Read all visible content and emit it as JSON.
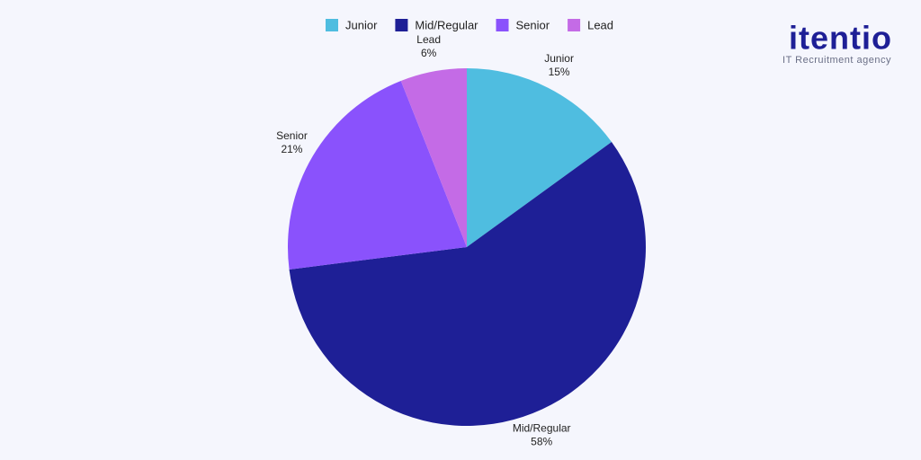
{
  "chart_data": {
    "type": "pie",
    "categories": [
      "Junior",
      "Mid/Regular",
      "Senior",
      "Lead"
    ],
    "values": [
      15,
      58,
      21,
      6
    ],
    "value_labels": [
      "15%",
      "58%",
      "21%",
      "6%"
    ],
    "colors": [
      "#4fbde0",
      "#1e1f96",
      "#8a52fc",
      "#c46be6"
    ],
    "legend": "top"
  },
  "branding": {
    "name": "itentio",
    "tagline": "IT Recruitment agency"
  }
}
